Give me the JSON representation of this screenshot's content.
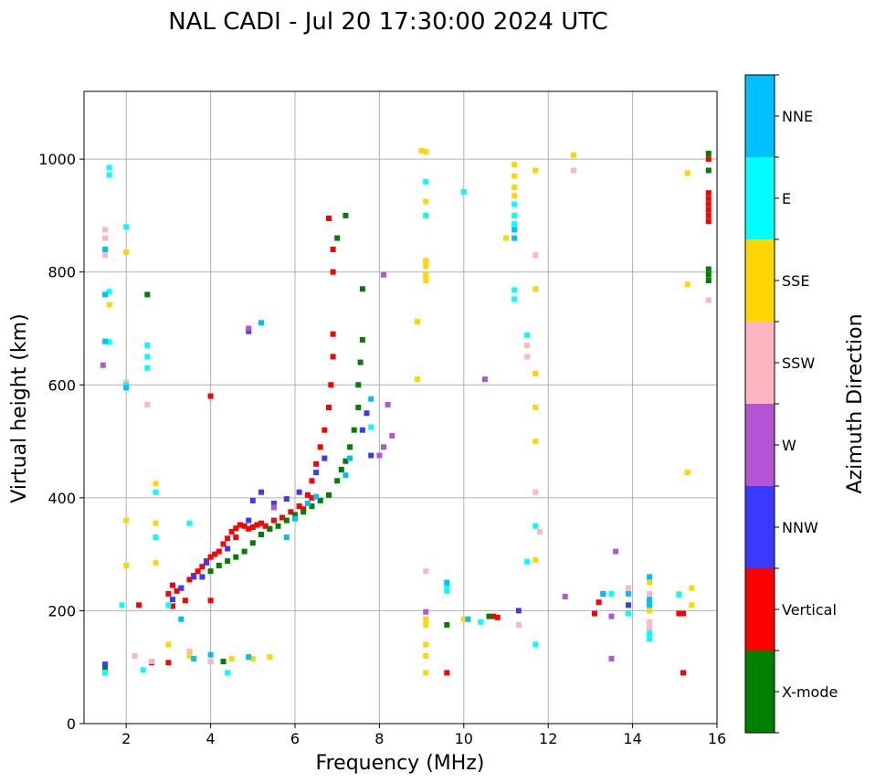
{
  "chart_data": {
    "type": "scatter",
    "title": "NAL CADI - Jul 20 17:30:00 2024 UTC",
    "xlabel": "Frequency (MHz)",
    "ylabel": "Virtual height (km)",
    "xlim": [
      1,
      16
    ],
    "ylim": [
      0,
      1120
    ],
    "xticks": [
      2,
      4,
      6,
      8,
      10,
      12,
      14,
      16
    ],
    "yticks": [
      0,
      200,
      400,
      600,
      800,
      1000
    ],
    "grid": true,
    "colorbar": {
      "label": "Azimuth Direction",
      "categories": [
        {
          "name": "X-mode",
          "color": "#008000"
        },
        {
          "name": "Vertical",
          "color": "#ff0000"
        },
        {
          "name": "NNW",
          "color": "#3a3aff"
        },
        {
          "name": "W",
          "color": "#b455d6"
        },
        {
          "name": "SSW",
          "color": "#ffb6c1"
        },
        {
          "name": "SSE",
          "color": "#ffd700"
        },
        {
          "name": "E",
          "color": "#00ffff"
        },
        {
          "name": "NNE",
          "color": "#00bfff"
        }
      ]
    },
    "series": [
      {
        "name": "Vertical",
        "points": [
          [
            3.0,
            230
          ],
          [
            3.1,
            245
          ],
          [
            3.2,
            235
          ],
          [
            3.3,
            240
          ],
          [
            3.5,
            255
          ],
          [
            3.6,
            262
          ],
          [
            3.7,
            270
          ],
          [
            3.8,
            278
          ],
          [
            3.9,
            288
          ],
          [
            4.0,
            295
          ],
          [
            4.1,
            300
          ],
          [
            4.2,
            305
          ],
          [
            4.3,
            318
          ],
          [
            4.4,
            328
          ],
          [
            4.5,
            340
          ],
          [
            4.6,
            346
          ],
          [
            4.7,
            352
          ],
          [
            4.8,
            350
          ],
          [
            4.9,
            345
          ],
          [
            5.0,
            348
          ],
          [
            5.1,
            352
          ],
          [
            5.2,
            355
          ],
          [
            5.3,
            350
          ],
          [
            5.5,
            360
          ],
          [
            5.7,
            365
          ],
          [
            5.9,
            375
          ],
          [
            6.1,
            385
          ],
          [
            6.3,
            405
          ],
          [
            6.4,
            430
          ],
          [
            6.5,
            460
          ],
          [
            6.6,
            490
          ],
          [
            6.7,
            520
          ],
          [
            6.8,
            560
          ],
          [
            6.85,
            600
          ],
          [
            6.9,
            650
          ],
          [
            6.9,
            690
          ],
          [
            6.9,
            800
          ],
          [
            6.9,
            840
          ],
          [
            6.8,
            895
          ],
          [
            4.0,
            580
          ],
          [
            2.6,
            108
          ],
          [
            3.0,
            108
          ],
          [
            4.0,
            218
          ],
          [
            3.1,
            208
          ],
          [
            3.4,
            218
          ],
          [
            10.7,
            190
          ],
          [
            10.8,
            188
          ],
          [
            13.1,
            195
          ],
          [
            13.2,
            215
          ],
          [
            15.1,
            195
          ],
          [
            15.2,
            195
          ],
          [
            15.2,
            90
          ],
          [
            15.8,
            890
          ],
          [
            15.8,
            900
          ],
          [
            15.8,
            910
          ],
          [
            15.8,
            920
          ],
          [
            15.8,
            930
          ],
          [
            15.8,
            940
          ],
          [
            15.8,
            1000
          ],
          [
            9.6,
            90
          ],
          [
            6.2,
            380
          ],
          [
            6.4,
            400
          ],
          [
            4.6,
            330
          ],
          [
            5.4,
            345
          ],
          [
            2.3,
            210
          ]
        ]
      },
      {
        "name": "X-mode",
        "points": [
          [
            4.0,
            270
          ],
          [
            4.2,
            280
          ],
          [
            4.4,
            288
          ],
          [
            4.6,
            295
          ],
          [
            4.8,
            305
          ],
          [
            5.0,
            320
          ],
          [
            5.2,
            335
          ],
          [
            5.4,
            345
          ],
          [
            5.6,
            350
          ],
          [
            5.8,
            360
          ],
          [
            6.0,
            370
          ],
          [
            6.2,
            375
          ],
          [
            6.4,
            385
          ],
          [
            6.6,
            395
          ],
          [
            6.8,
            405
          ],
          [
            7.0,
            430
          ],
          [
            7.1,
            450
          ],
          [
            7.2,
            465
          ],
          [
            7.3,
            490
          ],
          [
            7.4,
            520
          ],
          [
            7.5,
            560
          ],
          [
            7.5,
            600
          ],
          [
            7.55,
            640
          ],
          [
            7.6,
            680
          ],
          [
            7.6,
            770
          ],
          [
            7.0,
            860
          ],
          [
            7.2,
            900
          ],
          [
            2.5,
            760
          ],
          [
            4.0,
            110
          ],
          [
            4.3,
            110
          ],
          [
            9.6,
            175
          ],
          [
            10.6,
            190
          ],
          [
            15.8,
            785
          ],
          [
            15.8,
            795
          ],
          [
            15.8,
            805
          ],
          [
            15.8,
            1010
          ],
          [
            15.8,
            980
          ],
          [
            1.5,
            100
          ]
        ]
      },
      {
        "name": "NNW",
        "points": [
          [
            3.1,
            220
          ],
          [
            3.3,
            240
          ],
          [
            3.6,
            260
          ],
          [
            3.9,
            285
          ],
          [
            4.4,
            310
          ],
          [
            4.9,
            360
          ],
          [
            5.0,
            395
          ],
          [
            5.2,
            410
          ],
          [
            5.5,
            390
          ],
          [
            5.8,
            398
          ],
          [
            6.1,
            410
          ],
          [
            6.5,
            445
          ],
          [
            6.7,
            470
          ],
          [
            7.6,
            520
          ],
          [
            7.7,
            550
          ],
          [
            7.8,
            475
          ],
          [
            4.9,
            695
          ],
          [
            11.3,
            200
          ],
          [
            13.3,
            230
          ],
          [
            13.9,
            210
          ],
          [
            1.5,
            105
          ],
          [
            3.8,
            260
          ]
        ]
      },
      {
        "name": "W",
        "points": [
          [
            8.1,
            795
          ],
          [
            8.2,
            565
          ],
          [
            8.3,
            510
          ],
          [
            8.1,
            490
          ],
          [
            8.0,
            475
          ],
          [
            13.5,
            115
          ],
          [
            13.6,
            305
          ],
          [
            10.5,
            610
          ],
          [
            12.4,
            225
          ],
          [
            1.45,
            635
          ],
          [
            9.1,
            198
          ],
          [
            13.5,
            190
          ],
          [
            4.9,
            700
          ],
          [
            5.5,
            383
          ]
        ]
      },
      {
        "name": "SSW",
        "points": [
          [
            1.5,
            875
          ],
          [
            1.5,
            860
          ],
          [
            1.5,
            830
          ],
          [
            2.0,
            605
          ],
          [
            2.5,
            565
          ],
          [
            9.1,
            270
          ],
          [
            11.5,
            670
          ],
          [
            11.5,
            650
          ],
          [
            11.7,
            410
          ],
          [
            11.8,
            340
          ],
          [
            12.6,
            980
          ],
          [
            13.9,
            240
          ],
          [
            14.4,
            230
          ],
          [
            14.4,
            180
          ],
          [
            14.4,
            170
          ],
          [
            11.3,
            175
          ],
          [
            2.6,
            110
          ],
          [
            2.2,
            120
          ],
          [
            3.5,
            128
          ],
          [
            4.0,
            110
          ],
          [
            15.8,
            750
          ],
          [
            11.7,
            830
          ]
        ]
      },
      {
        "name": "SSE",
        "points": [
          [
            9.0,
            1015
          ],
          [
            9.1,
            1013
          ],
          [
            8.9,
            712
          ],
          [
            8.9,
            610
          ],
          [
            9.1,
            820
          ],
          [
            9.1,
            810
          ],
          [
            9.1,
            795
          ],
          [
            9.1,
            785
          ],
          [
            9.1,
            925
          ],
          [
            9.1,
            900
          ],
          [
            9.1,
            140
          ],
          [
            9.1,
            120
          ],
          [
            9.1,
            90
          ],
          [
            9.1,
            185
          ],
          [
            9.1,
            175
          ],
          [
            11.0,
            860
          ],
          [
            11.2,
            990
          ],
          [
            11.2,
            970
          ],
          [
            11.2,
            950
          ],
          [
            11.2,
            935
          ],
          [
            11.7,
            980
          ],
          [
            11.7,
            770
          ],
          [
            11.7,
            620
          ],
          [
            11.7,
            560
          ],
          [
            11.7,
            500
          ],
          [
            11.7,
            290
          ],
          [
            12.6,
            1007
          ],
          [
            15.3,
            975
          ],
          [
            15.3,
            778
          ],
          [
            15.3,
            445
          ],
          [
            15.4,
            240
          ],
          [
            15.4,
            210
          ],
          [
            15.1,
            230
          ],
          [
            14.4,
            250
          ],
          [
            14.4,
            200
          ],
          [
            10.0,
            185
          ],
          [
            2.7,
            425
          ],
          [
            2.7,
            355
          ],
          [
            2.7,
            285
          ],
          [
            2.0,
            835
          ],
          [
            1.6,
            742
          ],
          [
            2.0,
            360
          ],
          [
            2.0,
            280
          ],
          [
            3.0,
            140
          ],
          [
            3.5,
            120
          ],
          [
            4.5,
            115
          ],
          [
            5.0,
            115
          ],
          [
            5.4,
            118
          ]
        ]
      },
      {
        "name": "E",
        "points": [
          [
            1.6,
            985
          ],
          [
            1.6,
            972
          ],
          [
            2.0,
            880
          ],
          [
            1.6,
            765
          ],
          [
            1.6,
            676
          ],
          [
            2.0,
            600
          ],
          [
            2.5,
            670
          ],
          [
            2.5,
            650
          ],
          [
            2.5,
            630
          ],
          [
            2.7,
            410
          ],
          [
            2.7,
            330
          ],
          [
            3.5,
            355
          ],
          [
            1.9,
            210
          ],
          [
            9.1,
            960
          ],
          [
            9.1,
            900
          ],
          [
            9.6,
            245
          ],
          [
            9.6,
            235
          ],
          [
            10.4,
            180
          ],
          [
            11.2,
            920
          ],
          [
            11.2,
            900
          ],
          [
            11.2,
            885
          ],
          [
            11.2,
            768
          ],
          [
            11.2,
            752
          ],
          [
            11.5,
            688
          ],
          [
            11.7,
            350
          ],
          [
            11.7,
            140
          ],
          [
            11.5,
            287
          ],
          [
            14.4,
            215
          ],
          [
            14.4,
            160
          ],
          [
            14.4,
            150
          ],
          [
            13.9,
            195
          ],
          [
            13.5,
            230
          ],
          [
            15.1,
            228
          ],
          [
            10.0,
            942
          ],
          [
            3.0,
            210
          ],
          [
            2.4,
            95
          ],
          [
            4.4,
            90
          ],
          [
            1.5,
            90
          ],
          [
            7.8,
            525
          ]
        ]
      },
      {
        "name": "NNE",
        "points": [
          [
            1.5,
            840
          ],
          [
            1.5,
            760
          ],
          [
            1.5,
            677
          ],
          [
            2.0,
            595
          ],
          [
            3.6,
            115
          ],
          [
            4.0,
            122
          ],
          [
            4.9,
            118
          ],
          [
            6.0,
            363
          ],
          [
            6.3,
            390
          ],
          [
            6.5,
            402
          ],
          [
            7.2,
            440
          ],
          [
            7.3,
            470
          ],
          [
            7.8,
            575
          ],
          [
            5.8,
            330
          ],
          [
            3.3,
            185
          ],
          [
            9.6,
            250
          ],
          [
            13.3,
            230
          ],
          [
            13.9,
            230
          ],
          [
            14.4,
            260
          ],
          [
            14.4,
            220
          ],
          [
            14.4,
            210
          ],
          [
            11.2,
            875
          ],
          [
            11.2,
            860
          ],
          [
            5.2,
            710
          ],
          [
            10.1,
            185
          ]
        ]
      }
    ]
  }
}
